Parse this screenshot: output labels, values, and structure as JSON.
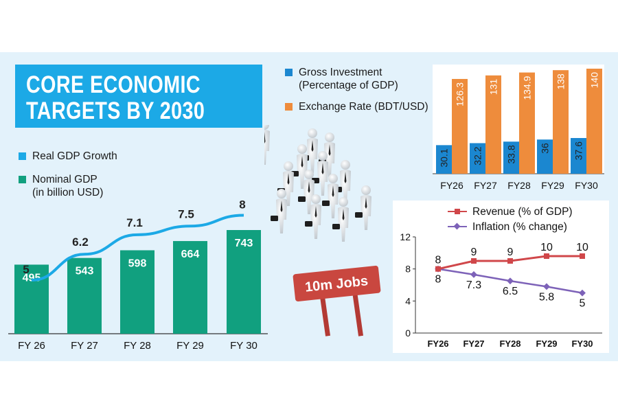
{
  "title": {
    "line1": "CORE ECONOMIC",
    "line2": "TARGETS BY 2030"
  },
  "colors": {
    "title_box": "#1ca9e6",
    "growth_line": "#1ca9e6",
    "gdp_bar": "#11a07f",
    "investment_bar": "#1b87d0",
    "exchange_bar": "#ee8c3c",
    "revenue_line": "#d0474a",
    "inflation_line": "#7d62b8",
    "panel_bg": "#e3f2fb"
  },
  "jobs_sign": "10m Jobs",
  "icons": [
    "businessmen-crowd-illustration",
    "road-sign"
  ],
  "chart_data": [
    {
      "type": "bar",
      "legend": [
        {
          "label": "Real GDP Growth"
        },
        {
          "label_line1": "Nominal GDP",
          "label_line2": "(in billion USD)"
        }
      ],
      "categories": [
        "FY 26",
        "FY 27",
        "FY 28",
        "FY 29",
        "FY 30"
      ],
      "series": [
        {
          "name": "Real GDP Growth",
          "type": "line",
          "values": [
            5,
            6.2,
            7.1,
            7.5,
            8
          ],
          "labels": [
            "5",
            "6.2",
            "7.1",
            "7.5",
            "8"
          ]
        },
        {
          "name": "Nominal GDP",
          "type": "bar",
          "values": [
            495,
            543,
            598,
            664,
            743
          ],
          "labels": [
            "495",
            "543",
            "598",
            "664",
            "743"
          ]
        }
      ],
      "ylim": [
        0,
        800
      ]
    },
    {
      "type": "bar",
      "legend": [
        {
          "label_line1": "Gross Investment",
          "label_line2": "(Percentage of GDP)"
        },
        {
          "label": "Exchange Rate (BDT/USD)"
        }
      ],
      "categories": [
        "FY26",
        "FY27",
        "FY28",
        "FY29",
        "FY30"
      ],
      "series": [
        {
          "name": "Gross Investment",
          "values": [
            30.1,
            32.2,
            33.8,
            36,
            37.6
          ],
          "labels": [
            "30.1",
            "32.2",
            "33.8",
            "36",
            "37.6"
          ]
        },
        {
          "name": "Exchange Rate (BDT/USD)",
          "values": [
            126.3,
            131,
            134.9,
            138,
            140
          ],
          "labels": [
            "126.3",
            "131",
            "134.9",
            "138",
            "140"
          ]
        }
      ],
      "ylim": [
        0,
        140
      ]
    },
    {
      "type": "line",
      "legend": [
        {
          "label": "Revenue (% of GDP)"
        },
        {
          "label": "Inflation (% change)"
        }
      ],
      "categories": [
        "FY26",
        "FY27",
        "FY28",
        "FY29",
        "FY30"
      ],
      "series": [
        {
          "name": "Revenue (% of GDP)",
          "values": [
            8,
            9,
            9,
            9.6,
            9.6
          ],
          "labels": [
            "8",
            "9",
            "9",
            "10",
            "10"
          ]
        },
        {
          "name": "Inflation (% change)",
          "values": [
            8,
            7.3,
            6.5,
            5.8,
            5
          ],
          "labels": [
            "8",
            "7.3",
            "6.5",
            "5.8",
            "5"
          ]
        }
      ],
      "yticks": [
        "0",
        "4",
        "8",
        "12"
      ],
      "ylim": [
        0,
        12
      ],
      "grid": false
    }
  ]
}
